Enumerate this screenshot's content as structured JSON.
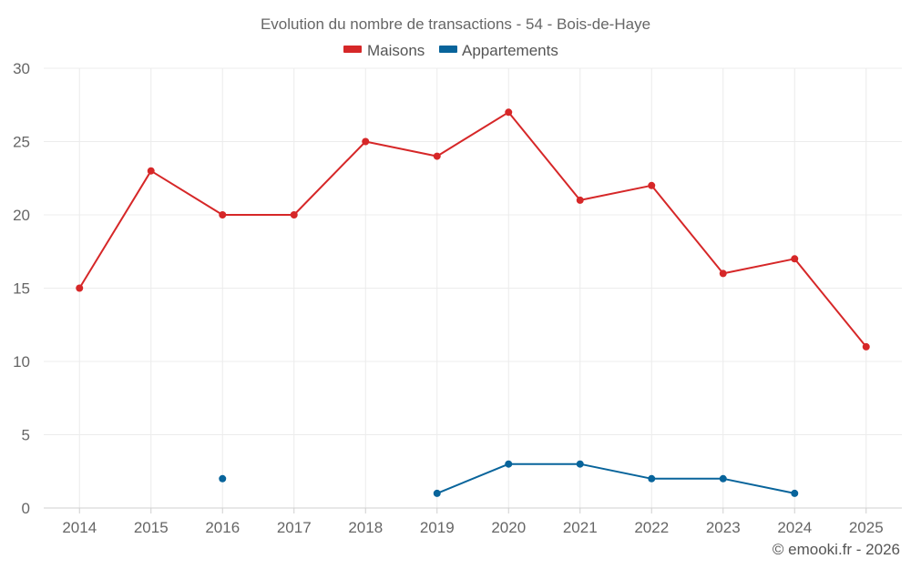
{
  "chart_data": {
    "type": "line",
    "title": "Evolution du nombre de transactions - 54 - Bois-de-Haye",
    "categories": [
      "2014",
      "2015",
      "2016",
      "2017",
      "2018",
      "2019",
      "2020",
      "2021",
      "2022",
      "2023",
      "2024",
      "2025"
    ],
    "ylim": [
      0,
      30
    ],
    "yticks": [
      0,
      5,
      10,
      15,
      20,
      25,
      30
    ],
    "grid": true,
    "legend_position": "top-center",
    "series": [
      {
        "name": "Maisons",
        "color": "#d62728",
        "values": [
          15,
          23,
          20,
          20,
          25,
          24,
          27,
          21,
          22,
          16,
          17,
          11
        ]
      },
      {
        "name": "Appartements",
        "color": "#08649b",
        "values": [
          null,
          null,
          2,
          null,
          null,
          1,
          3,
          3,
          2,
          2,
          1,
          null
        ]
      }
    ],
    "credit": "© emooki.fr - 2026"
  }
}
